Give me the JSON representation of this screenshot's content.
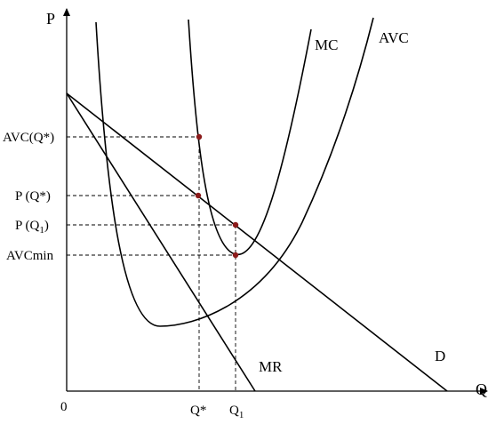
{
  "axes": {
    "y_label": "P",
    "x_label": "Q",
    "origin_label": "0"
  },
  "y_ticks": {
    "avc_qstar": "AVC(Q*)",
    "p_qstar": "P (Q*)",
    "p_q1_main": "P (Q",
    "p_q1_sub": "1",
    "p_q1_close": ")",
    "avc_min": "AVCmin"
  },
  "x_ticks": {
    "q_star": "Q*",
    "q1_main": "Q",
    "q1_sub": "1"
  },
  "curves": {
    "mc": "MC",
    "avc": "AVC",
    "mr": "MR",
    "d": "D"
  },
  "colors": {
    "point": "#8b1a1a",
    "line": "#000000"
  }
}
